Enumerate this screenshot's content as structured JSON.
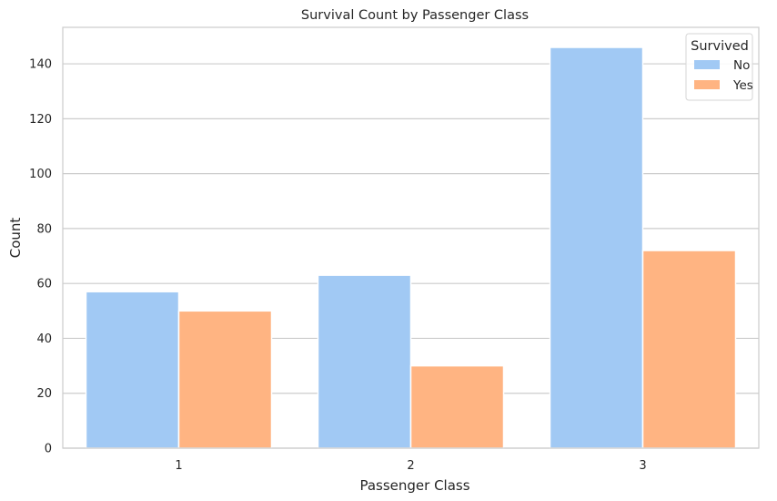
{
  "chart_data": {
    "type": "bar",
    "title": "Survival Count by Passenger Class",
    "xlabel": "Passenger Class",
    "ylabel": "Count",
    "categories": [
      "1",
      "2",
      "3"
    ],
    "series": [
      {
        "name": "No",
        "values": [
          57,
          63,
          146
        ],
        "color": "#a1c9f4"
      },
      {
        "name": "Yes",
        "values": [
          50,
          30,
          72
        ],
        "color": "#ffb482"
      }
    ],
    "ylim": [
      0,
      153.3
    ],
    "yticks": [
      0,
      20,
      40,
      60,
      80,
      100,
      120,
      140
    ],
    "grid": "horizontal",
    "legend": {
      "title": "Survived",
      "placement": "top-right"
    }
  }
}
